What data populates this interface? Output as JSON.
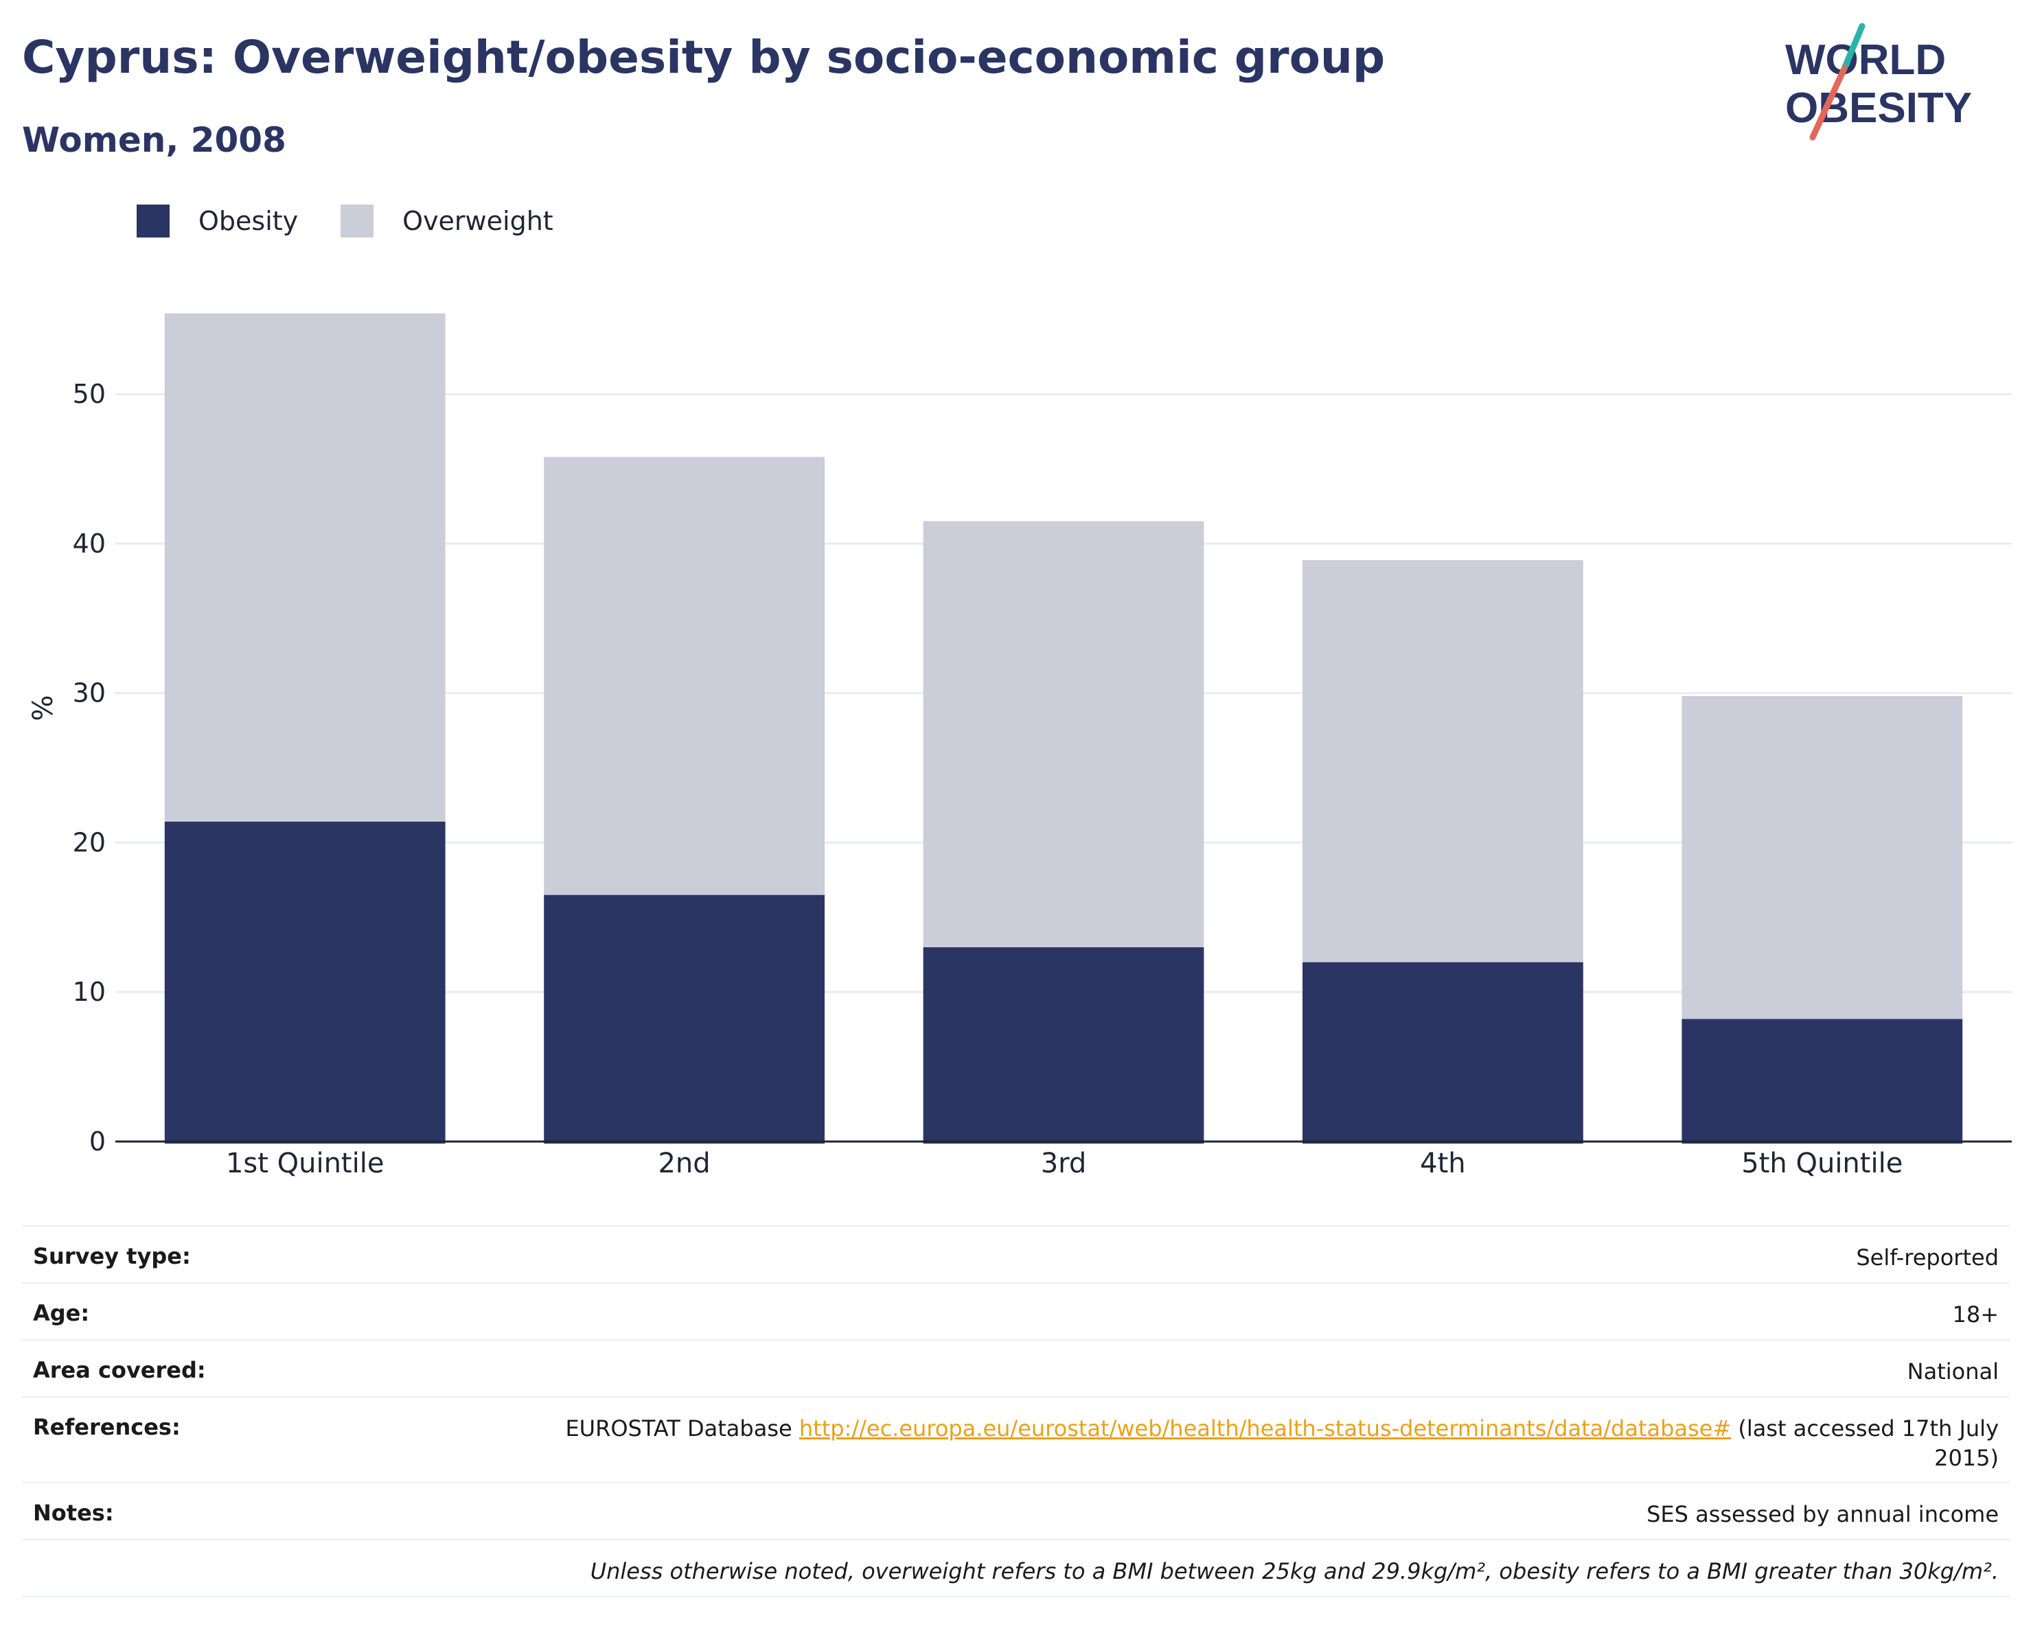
{
  "header": {
    "title": "Cyprus: Overweight/obesity by socio-economic group",
    "subtitle": "Women, 2008"
  },
  "logo": {
    "line1": "WORLD",
    "line2": "OBESITY",
    "text_color": "#2a3563",
    "slash_top_color": "#2bb3a9",
    "slash_bottom_color": "#e5665a"
  },
  "colors": {
    "obesity": "#2a3563",
    "overweight": "#cbcdd9",
    "grid": "#e9ebf1",
    "axis": "#1f2533",
    "link": "#e8a21b"
  },
  "chart_data": {
    "type": "bar",
    "stacked": true,
    "categories": [
      "1st Quintile",
      "2nd",
      "3rd",
      "4th",
      "5th Quintile"
    ],
    "series": [
      {
        "name": "Obesity",
        "values": [
          21.4,
          16.5,
          13.0,
          12.0,
          8.2
        ]
      },
      {
        "name": "Overweight",
        "values": [
          34.0,
          29.3,
          28.5,
          26.9,
          21.6
        ]
      }
    ],
    "ylabel": "%",
    "xlabel": "",
    "ylim": [
      0,
      58
    ],
    "yticks": [
      0,
      10,
      20,
      30,
      40,
      50
    ],
    "grid": true,
    "legend_position": "top-left"
  },
  "info": {
    "survey_type": {
      "label": "Survey type:",
      "value": "Self-reported"
    },
    "age": {
      "label": "Age:",
      "value": "18+"
    },
    "area": {
      "label": "Area covered:",
      "value": "National"
    },
    "references": {
      "label": "References:",
      "prefix": "EUROSTAT Database ",
      "link": "http://ec.europa.eu/eurostat/web/health/health-status-determinants/data/database#",
      "suffix_line1": " (last accessed 17th July",
      "suffix_line2": "2015)"
    },
    "notes": {
      "label": "Notes:",
      "value": "SES assessed by annual income"
    },
    "disclaimer": "Unless otherwise noted, overweight refers to a BMI between 25kg and 29.9kg/m², obesity refers to a BMI greater than 30kg/m²."
  }
}
